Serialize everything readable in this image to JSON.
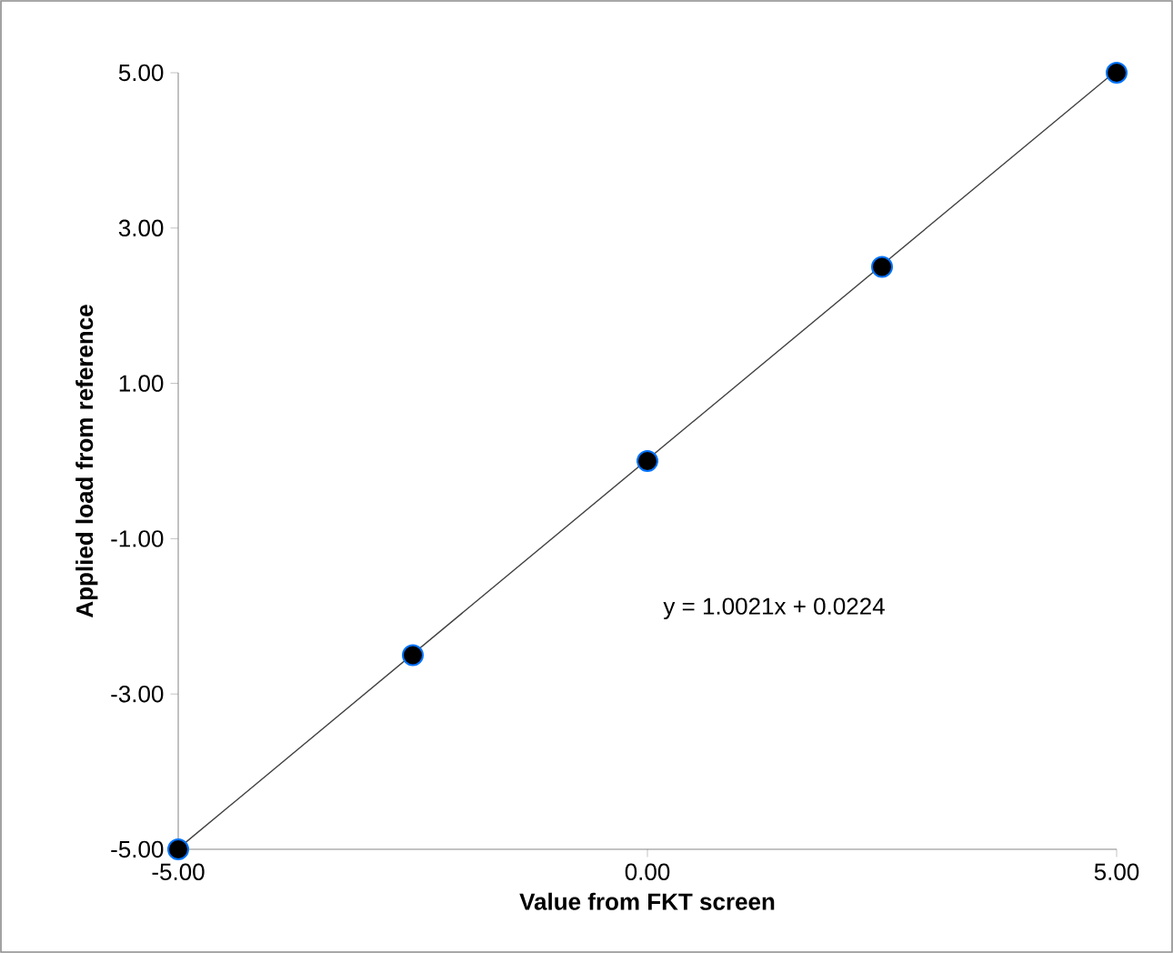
{
  "chart_data": {
    "type": "scatter",
    "xlabel": "Value from FKT screen",
    "ylabel": "Applied load from reference",
    "xlim": [
      -5,
      5
    ],
    "ylim": [
      -5,
      5
    ],
    "xticks": [
      {
        "value": -5,
        "label": "-5.00"
      },
      {
        "value": 0,
        "label": "0.00"
      },
      {
        "value": 5,
        "label": "5.00"
      }
    ],
    "yticks": [
      {
        "value": -5,
        "label": "-5.00"
      },
      {
        "value": -3,
        "label": "-3.00"
      },
      {
        "value": -1,
        "label": "-1.00"
      },
      {
        "value": 1,
        "label": "1.00"
      },
      {
        "value": 3,
        "label": "3.00"
      },
      {
        "value": 5,
        "label": "5.00"
      }
    ],
    "grid": false,
    "series": [
      {
        "color": "#000000",
        "marker": "circle",
        "x": [
          -5,
          -2.5,
          0,
          2.5,
          5
        ],
        "values": [
          -5,
          -2.5,
          0,
          2.5,
          5
        ]
      },
      {
        "type": "line",
        "color": "#404040",
        "marker": "none",
        "x": [
          -5,
          4.97
        ],
        "values": [
          -4.99,
          5
        ]
      }
    ],
    "annotations": [
      "y = 1.0021x + 0.0224"
    ]
  }
}
